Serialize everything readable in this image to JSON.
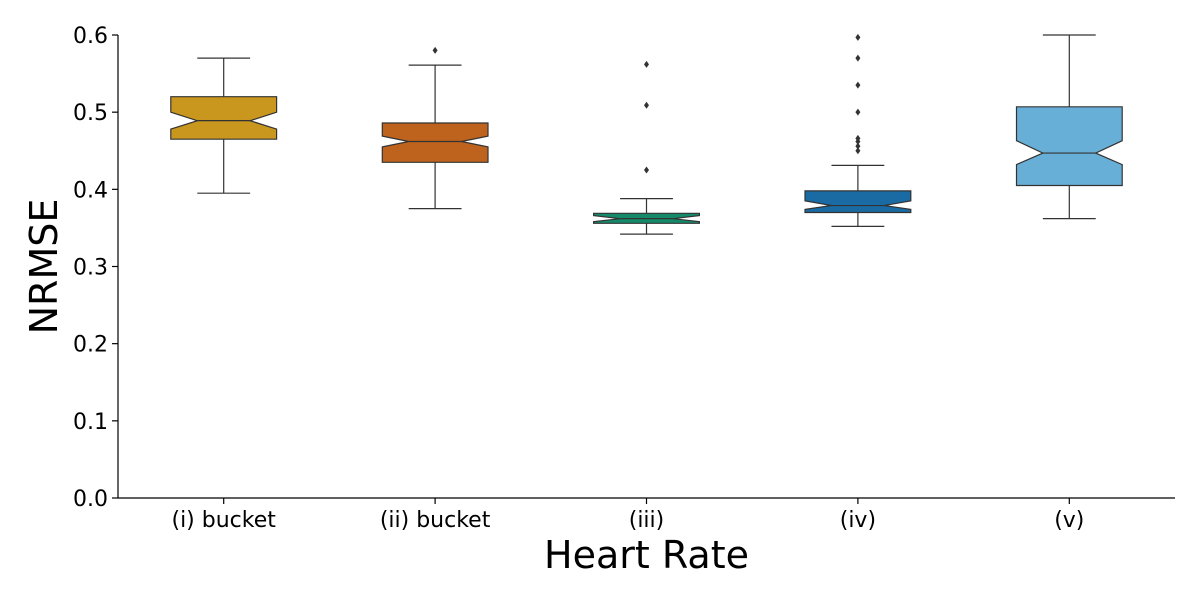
{
  "chart_data": {
    "type": "box",
    "notched": true,
    "xlabel": "Heart Rate",
    "ylabel": "NRMSE",
    "ylim": [
      0.0,
      0.6
    ],
    "yticks": [
      0.0,
      0.1,
      0.2,
      0.3,
      0.4,
      0.5,
      0.6
    ],
    "ytick_labels": [
      "0.0",
      "0.1",
      "0.2",
      "0.3",
      "0.4",
      "0.5",
      "0.6"
    ],
    "grid": false,
    "categories": [
      "(i) bucket",
      "(ii) bucket",
      "(iii)",
      "(iv)",
      "(v)"
    ],
    "boxes": [
      {
        "category": "(i) bucket",
        "color": "#C9961E",
        "whisker_low": 0.395,
        "q1": 0.465,
        "median": 0.489,
        "q3": 0.52,
        "whisker_high": 0.57,
        "notch_low": 0.478,
        "notch_high": 0.5,
        "outliers": []
      },
      {
        "category": "(ii) bucket",
        "color": "#BE631D",
        "whisker_low": 0.375,
        "q1": 0.435,
        "median": 0.462,
        "q3": 0.486,
        "whisker_high": 0.561,
        "notch_low": 0.455,
        "notch_high": 0.469,
        "outliers": [
          0.58
        ]
      },
      {
        "category": "(iii)",
        "color": "#158A6B",
        "whisker_low": 0.342,
        "q1": 0.356,
        "median": 0.362,
        "q3": 0.369,
        "whisker_high": 0.388,
        "notch_low": 0.358,
        "notch_high": 0.366,
        "outliers": [
          0.425,
          0.509,
          0.562
        ]
      },
      {
        "category": "(iv)",
        "color": "#1A6BA3",
        "whisker_low": 0.352,
        "q1": 0.37,
        "median": 0.379,
        "q3": 0.398,
        "whisker_high": 0.431,
        "notch_low": 0.374,
        "notch_high": 0.385,
        "outliers": [
          0.45,
          0.456,
          0.462,
          0.466,
          0.5,
          0.535,
          0.57,
          0.597
        ]
      },
      {
        "category": "(v)",
        "color": "#68AFD8",
        "whisker_low": 0.362,
        "q1": 0.405,
        "median": 0.447,
        "q3": 0.507,
        "whisker_high": 0.6,
        "notch_low": 0.432,
        "notch_high": 0.463,
        "outliers": []
      }
    ]
  }
}
